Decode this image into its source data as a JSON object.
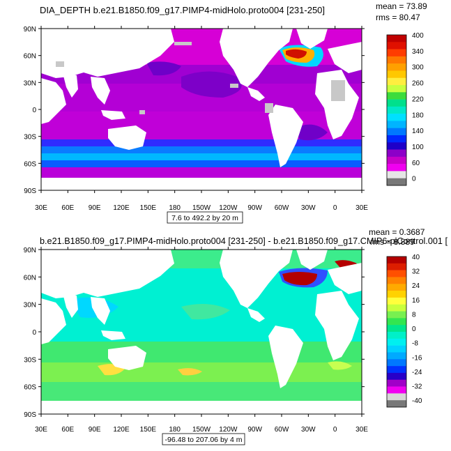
{
  "palette": {
    "ocean_base": "#8e00c8",
    "land": "#ffffff",
    "missing": "#c8c8c8",
    "frame": "#000000"
  },
  "panels": [
    {
      "title": "DIA_DEPTH b.e21.B1850.f09_g17.PIMP4-midHolo.proto004 [231-250]",
      "stats_mean": "mean = 73.89",
      "stats_rms": "rms = 80.47",
      "range_note": "7.6 to 492.2 by 20 m",
      "lat_labels": [
        "90N",
        "60N",
        "30N",
        "0",
        "30S",
        "60S",
        "90S"
      ],
      "lon_labels": [
        "30E",
        "60E",
        "90E",
        "120E",
        "150E",
        "180",
        "150W",
        "120W",
        "90W",
        "60W",
        "30W",
        "0",
        "30E"
      ],
      "colorbar_labels": [
        "400",
        "340",
        "300",
        "260",
        "220",
        "180",
        "140",
        "100",
        "60",
        "0"
      ],
      "colorbar_colors": [
        "#c00000",
        "#e01000",
        "#ff3c00",
        "#ff7800",
        "#ffa000",
        "#ffc800",
        "#ffee40",
        "#c8ff40",
        "#3cdc3c",
        "#00e08c",
        "#00e8c8",
        "#00e0ff",
        "#00b4ff",
        "#0078ff",
        "#0028ff",
        "#1e00c8",
        "#8c00c8",
        "#c800c8",
        "#f000f0",
        "#e6e6e6",
        "#787878"
      ]
    },
    {
      "title": "b.e21.B1850.f09_g17.PIMP4-midHolo.proto004 [231-250] - b.e21.B1850.f09_g17.CMIP6-piControl.001 [",
      "stats_mean": "mean = 0.3687",
      "stats_rms": "rms = 8.889",
      "range_note": "-96.48 to 207.06 by 4 m",
      "lat_labels": [
        "90N",
        "60N",
        "30N",
        "0",
        "30S",
        "60S",
        "90S"
      ],
      "lon_labels": [
        "30E",
        "60E",
        "90E",
        "120E",
        "150E",
        "180",
        "150W",
        "120W",
        "90W",
        "60W",
        "30W",
        "0",
        "30E"
      ],
      "colorbar_labels": [
        "40",
        "32",
        "24",
        "16",
        "8",
        "0",
        "-8",
        "-16",
        "-24",
        "-32",
        "-40"
      ],
      "colorbar_colors": [
        "#b40000",
        "#dc1e00",
        "#ff5000",
        "#ff8200",
        "#ffaa00",
        "#ffd200",
        "#ffff3c",
        "#c8ff3c",
        "#78f050",
        "#32e650",
        "#00e68c",
        "#00f0c8",
        "#00f0f0",
        "#00d2ff",
        "#00aaff",
        "#0078ff",
        "#0032ff",
        "#2800c8",
        "#a000c8",
        "#f000f0",
        "#d7d7d7",
        "#787878"
      ]
    }
  ]
}
